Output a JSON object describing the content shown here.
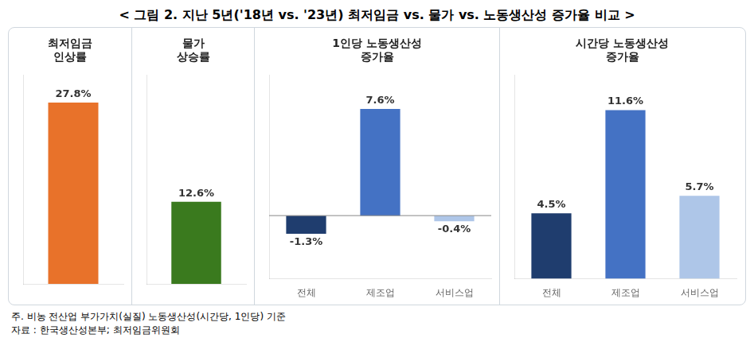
{
  "title": "< 그림 2. 지난 5년('18년 vs. '23년) 최저임금 vs. 물가 vs. 노동생산성 증가율 비교 >",
  "annotations": [
    "주.  비농 전산업 부가가치(실질) 노동생산성(시간당, 1인당) 기준",
    "자료 : 한국생산성본부; 최저임금위원회"
  ],
  "chart_data": [
    {
      "type": "bar",
      "title": "최저임금\n인상률",
      "categories": [
        null
      ],
      "values": [
        27.8
      ],
      "value_labels": [
        "27.8%"
      ],
      "color": "#e8722a",
      "ylim": [
        0,
        32
      ],
      "data_labels": true,
      "tick_labels": false,
      "grid": false
    },
    {
      "type": "bar",
      "title": "물가\n상승률",
      "categories": [
        null
      ],
      "values": [
        12.6
      ],
      "value_labels": [
        "12.6%"
      ],
      "color": "#3a7a1e",
      "ylim": [
        0,
        32
      ],
      "data_labels": true,
      "tick_labels": false,
      "grid": false
    },
    {
      "type": "bar",
      "title": "1인당 노동생산성\n증가율",
      "categories": [
        "전체",
        "제조업",
        "서비스업"
      ],
      "values": [
        -1.3,
        7.6,
        -0.4
      ],
      "value_labels": [
        "-1.3%",
        "7.6%",
        "-0.4%"
      ],
      "colors": [
        "#1f3d6e",
        "#4472c4",
        "#aec6e8"
      ],
      "ylim": [
        -4.5,
        10
      ],
      "data_labels": true,
      "tick_labels": "x",
      "grid": false
    },
    {
      "type": "bar",
      "title": "시간당 노동생산성\n증가율",
      "categories": [
        "전체",
        "제조업",
        "서비스업"
      ],
      "values": [
        4.5,
        11.6,
        5.7
      ],
      "value_labels": [
        "4.5%",
        "11.6%",
        "5.7%"
      ],
      "colors": [
        "#1f3d6e",
        "#4472c4",
        "#aec6e8"
      ],
      "ylim": [
        0,
        14
      ],
      "data_labels": true,
      "tick_labels": "x",
      "grid": false
    }
  ]
}
